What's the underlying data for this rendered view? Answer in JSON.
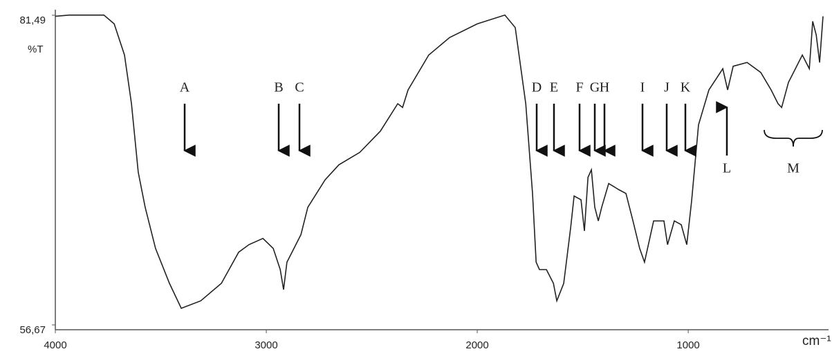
{
  "chart_data": {
    "type": "line",
    "y_label": "%T",
    "x_label": "cm⁻¹",
    "x": [
      4000,
      3934,
      3770,
      3721,
      3672,
      3639,
      3607,
      3574,
      3525,
      3459,
      3403,
      3311,
      3213,
      3131,
      3082,
      3016,
      2967,
      2934,
      2918,
      2902,
      2869,
      2836,
      2803,
      2721,
      2656,
      2557,
      2459,
      2377,
      2354,
      2328,
      2230,
      2131,
      2000,
      1869,
      1820,
      1770,
      1738,
      1721,
      1705,
      1672,
      1639,
      1623,
      1590,
      1557,
      1541,
      1508,
      1492,
      1475,
      1459,
      1443,
      1426,
      1410,
      1377,
      1328,
      1295,
      1262,
      1230,
      1207,
      1164,
      1115,
      1098,
      1066,
      1033,
      1007,
      984,
      951,
      902,
      836,
      813,
      787,
      721,
      656,
      607,
      574,
      557,
      525,
      459,
      426,
      410,
      393,
      377,
      361
    ],
    "values": [
      81.4,
      81.5,
      81.5,
      80.8,
      78.3,
      74.4,
      68.9,
      66.1,
      62.8,
      60.0,
      58.0,
      58.6,
      60.0,
      62.5,
      63.1,
      63.6,
      62.8,
      61.1,
      59.5,
      61.7,
      62.8,
      63.9,
      66.1,
      68.3,
      69.5,
      70.5,
      72.2,
      74.4,
      74.1,
      75.5,
      78.3,
      79.7,
      80.8,
      81.5,
      80.5,
      74.4,
      67.2,
      61.7,
      61.1,
      61.1,
      60.0,
      58.6,
      60.0,
      64.5,
      67.0,
      66.7,
      64.2,
      68.5,
      69.1,
      66.1,
      65.0,
      66.1,
      68.0,
      67.5,
      67.2,
      65.0,
      62.8,
      61.7,
      65.0,
      65.0,
      63.1,
      65.0,
      64.7,
      63.1,
      66.6,
      72.7,
      75.5,
      77.2,
      75.5,
      77.4,
      77.7,
      76.9,
      75.5,
      74.4,
      74.1,
      76.1,
      78.3,
      77.2,
      81.0,
      79.9,
      77.7,
      81.4
    ],
    "color": "#222222",
    "annotations": [
      "A",
      "B",
      "C",
      "D",
      "E",
      "F",
      "G",
      "H",
      "I",
      "J",
      "K",
      "L",
      "M"
    ],
    "xlim": [
      4000,
      361
    ],
    "xticks": [
      4000,
      3000,
      2000,
      1000
    ],
    "ylim": [
      56.67,
      81.49
    ],
    "yticks": [
      {
        "value": 56.67,
        "label": "56,67"
      },
      {
        "value": 81.49,
        "label": "81,49"
      }
    ],
    "grid": false
  }
}
